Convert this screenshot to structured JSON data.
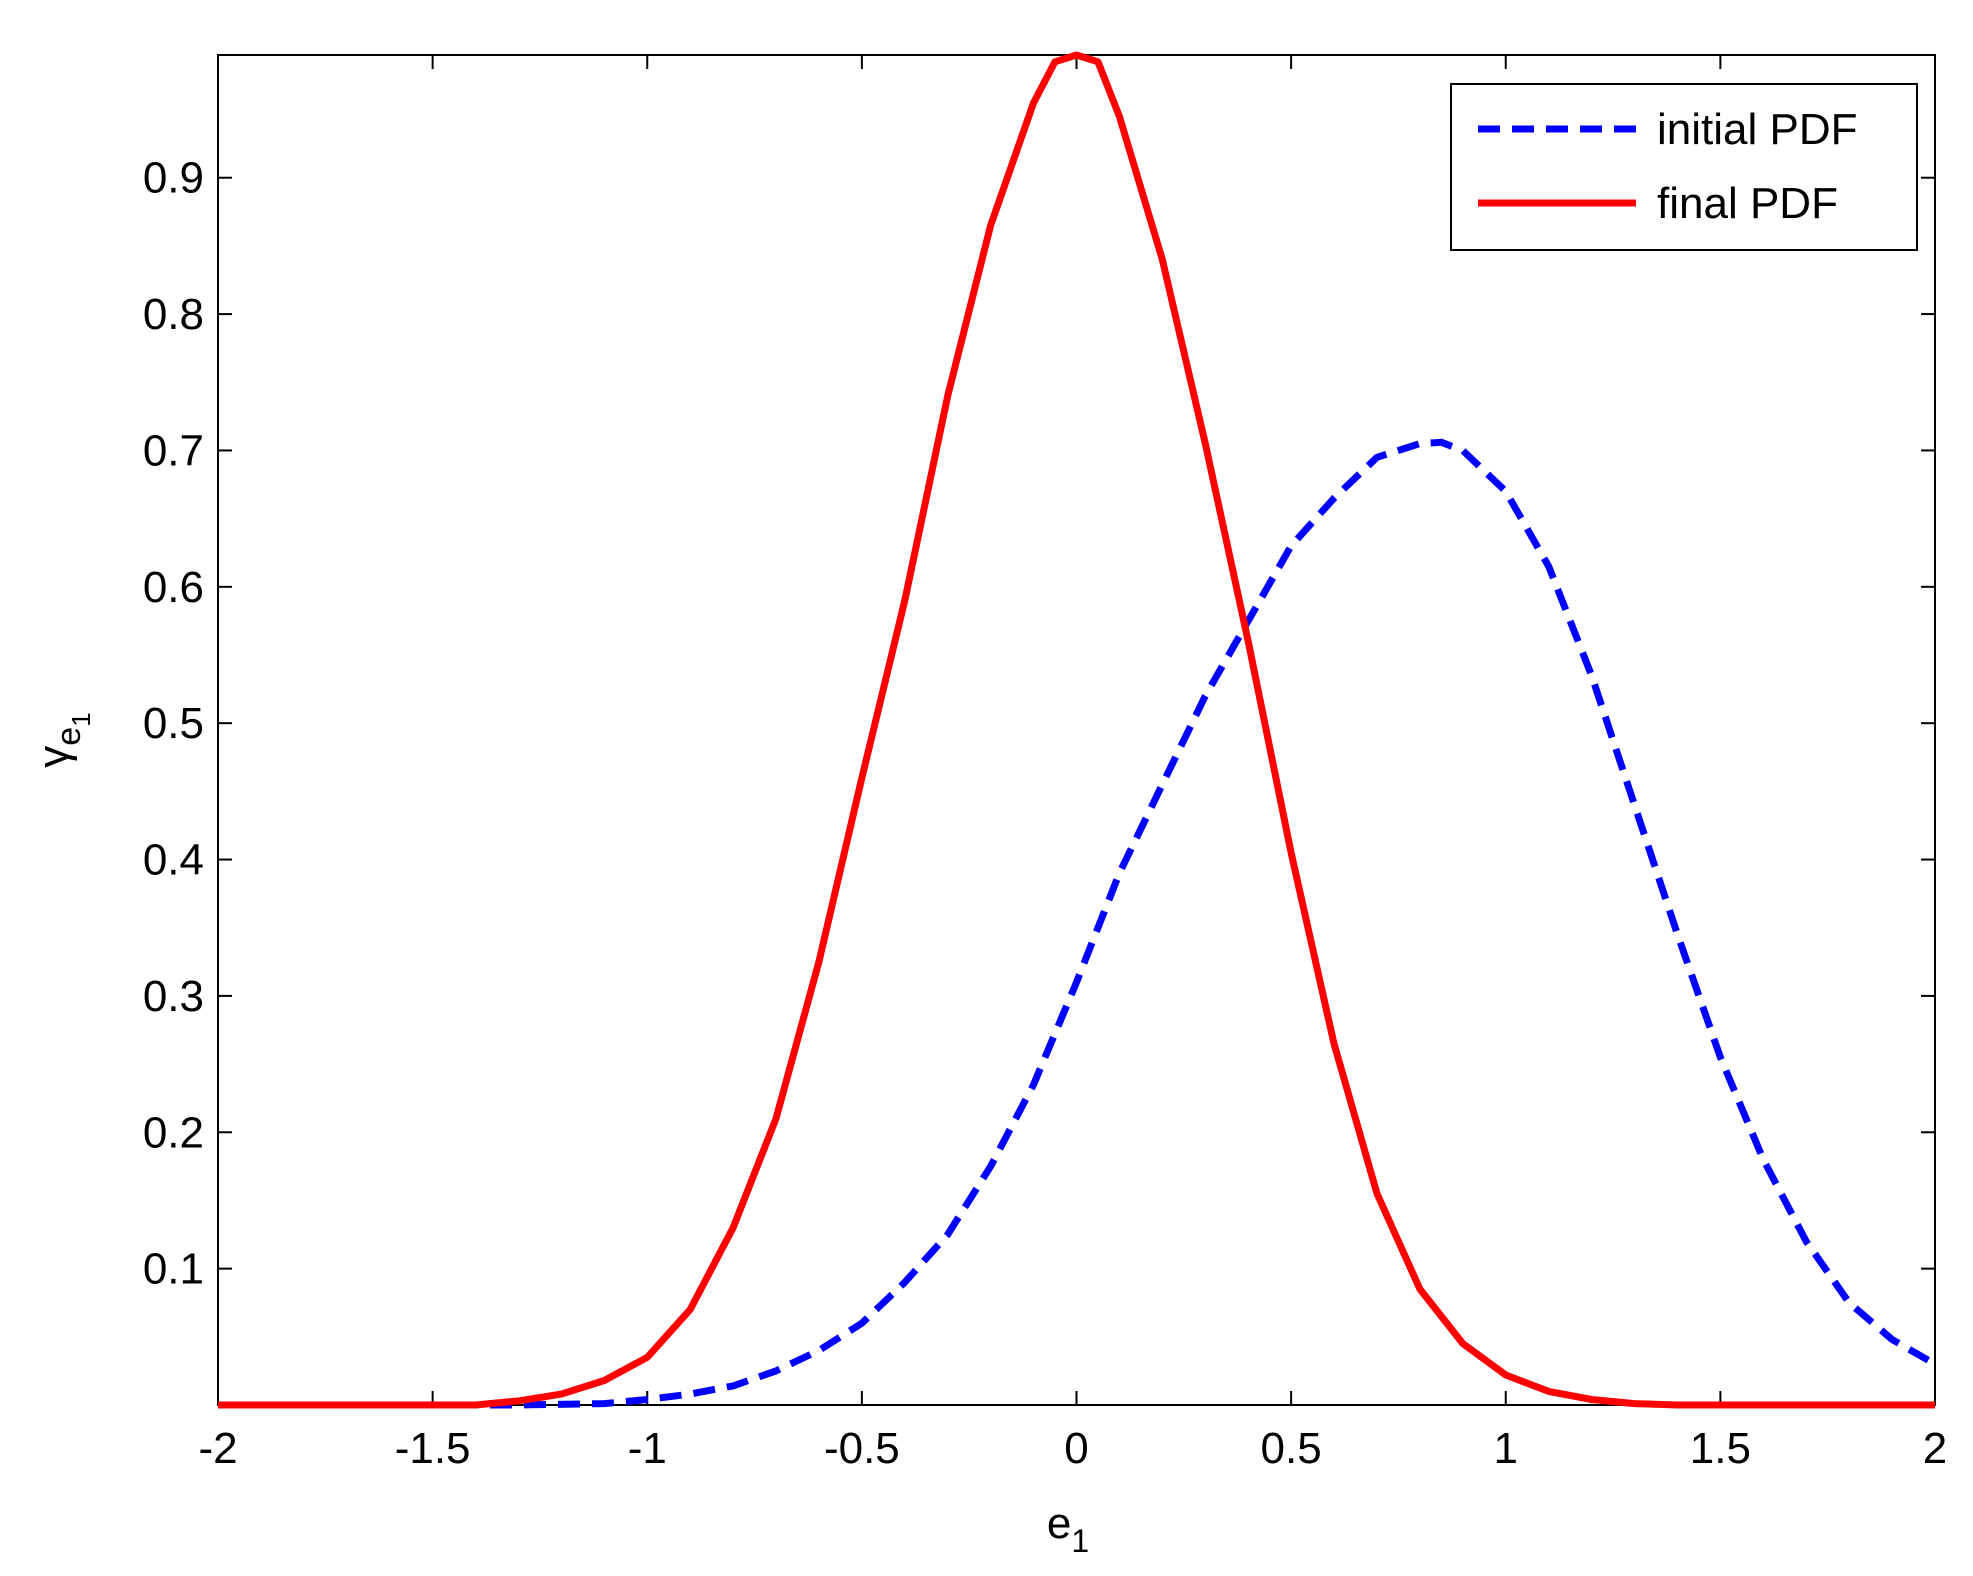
{
  "chart_data": {
    "type": "line",
    "title": "",
    "xlabel": "e",
    "xlabel_subscript": "1",
    "ylabel": "γ",
    "ylabel_subscript": "e",
    "ylabel_subsubscript": "1",
    "xlim": [
      -2,
      2
    ],
    "ylim": [
      0,
      0.99
    ],
    "grid": false,
    "legend_position": "top-right",
    "x_ticks": [
      -2,
      -1.5,
      -1,
      -0.5,
      0,
      0.5,
      1,
      1.5,
      2
    ],
    "x_tick_labels": [
      "-2",
      "-1.5",
      "-1",
      "-0.5",
      "0",
      "0.5",
      "1",
      "1.5",
      "2"
    ],
    "y_ticks": [
      0.1,
      0.2,
      0.3,
      0.4,
      0.5,
      0.6,
      0.7,
      0.8,
      0.9
    ],
    "y_tick_labels": [
      "0.1",
      "0.2",
      "0.3",
      "0.4",
      "0.5",
      "0.6",
      "0.7",
      "0.8",
      "0.9"
    ],
    "series": [
      {
        "name": "initial PDF",
        "color": "#0000ff",
        "style": "dashed",
        "x": [
          -2,
          -1.5,
          -1.3,
          -1.1,
          -1.0,
          -0.9,
          -0.8,
          -0.7,
          -0.6,
          -0.5,
          -0.4,
          -0.3,
          -0.2,
          -0.1,
          0,
          0.1,
          0.2,
          0.3,
          0.4,
          0.5,
          0.6,
          0.7,
          0.8,
          0.85,
          0.9,
          1.0,
          1.1,
          1.2,
          1.3,
          1.4,
          1.5,
          1.6,
          1.7,
          1.8,
          1.9,
          2.0
        ],
        "y": [
          0,
          0,
          0,
          0.001,
          0.004,
          0.008,
          0.014,
          0.025,
          0.04,
          0.06,
          0.09,
          0.125,
          0.175,
          0.235,
          0.31,
          0.39,
          0.455,
          0.52,
          0.575,
          0.63,
          0.665,
          0.695,
          0.705,
          0.706,
          0.7,
          0.67,
          0.615,
          0.535,
          0.44,
          0.345,
          0.255,
          0.18,
          0.12,
          0.075,
          0.048,
          0.03
        ]
      },
      {
        "name": "final PDF",
        "color": "#ff0000",
        "style": "solid",
        "x": [
          -2,
          -1.5,
          -1.4,
          -1.3,
          -1.2,
          -1.1,
          -1.0,
          -0.9,
          -0.8,
          -0.7,
          -0.6,
          -0.5,
          -0.4,
          -0.3,
          -0.2,
          -0.1,
          -0.05,
          0,
          0.05,
          0.1,
          0.2,
          0.3,
          0.4,
          0.5,
          0.6,
          0.7,
          0.8,
          0.9,
          1.0,
          1.1,
          1.2,
          1.3,
          1.4,
          1.5,
          2.0
        ],
        "y": [
          0,
          0,
          0,
          0.003,
          0.008,
          0.018,
          0.035,
          0.07,
          0.13,
          0.21,
          0.325,
          0.46,
          0.59,
          0.74,
          0.865,
          0.955,
          0.985,
          0.99,
          0.985,
          0.945,
          0.84,
          0.705,
          0.56,
          0.405,
          0.265,
          0.155,
          0.085,
          0.045,
          0.022,
          0.01,
          0.004,
          0.001,
          0,
          0,
          0
        ]
      }
    ]
  }
}
